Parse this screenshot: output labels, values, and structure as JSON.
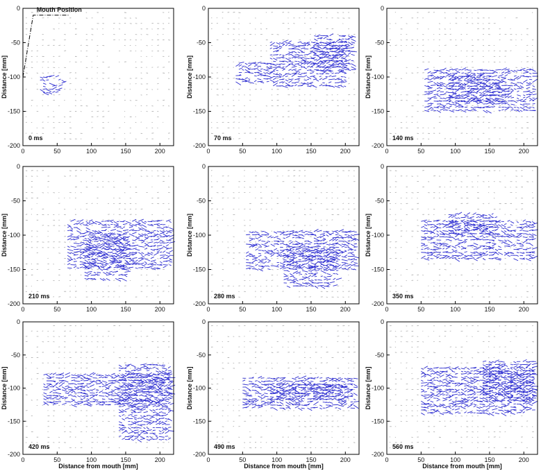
{
  "figure": {
    "annotation": "Mouth Position",
    "ylabel": "Distance [mm]",
    "xlabel": "Distance from mouth [mm]",
    "xticks": [
      0,
      50,
      100,
      150,
      200
    ],
    "yticks": [
      0,
      -50,
      -100,
      -150,
      -200
    ],
    "xlim": [
      0,
      220
    ],
    "ylim": [
      -200,
      0
    ],
    "panels": [
      {
        "time": "0 ms"
      },
      {
        "time": "70 ms"
      },
      {
        "time": "140 ms"
      },
      {
        "time": "210 ms"
      },
      {
        "time": "280 ms"
      },
      {
        "time": "350 ms"
      },
      {
        "time": "420 ms"
      },
      {
        "time": "490 ms"
      },
      {
        "time": "560 ms"
      }
    ]
  }
}
